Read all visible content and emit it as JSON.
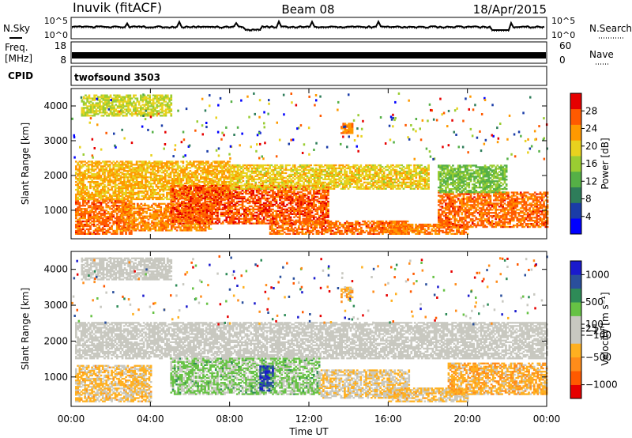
{
  "header": {
    "title_left": "Inuvik (fitACF)",
    "title_center": "Beam 08",
    "title_right": "18/Apr/2015"
  },
  "top_strips": {
    "nsky_label": "N.Sky",
    "nsearch_label": "N.Search",
    "nsky_ticks": [
      "10^5",
      "10^0"
    ],
    "nsearch_ticks": [
      "10^5",
      "10^0"
    ],
    "freq_label": "Freq.",
    "freq_unit": "[MHz]",
    "freq_ticks": [
      "18",
      "8"
    ],
    "nave_label": "Nave",
    "nave_ticks": [
      "60",
      "0"
    ],
    "cpid_label": "CPID",
    "cpid_value": "twofsound 3503"
  },
  "chart_data": [
    {
      "type": "heatmap",
      "name": "power",
      "ylabel": "Slant Range [km]",
      "ylim": [
        180,
        4500
      ],
      "yticks": [
        1000,
        2000,
        3000,
        4000
      ],
      "xlim": [
        0,
        24
      ],
      "xtick_labels": [
        "00:00",
        "04:00",
        "08:00",
        "12:00",
        "16:00",
        "20:00",
        "00:00"
      ],
      "xtick_values": [
        0,
        4,
        8,
        12,
        16,
        20,
        24
      ],
      "colorbar": {
        "label": "Power [dB]",
        "tick_labels": [
          "28",
          "24",
          "20",
          "16",
          "12",
          "8",
          "4"
        ],
        "tick_values": [
          28,
          24,
          20,
          16,
          12,
          8,
          4
        ],
        "range": [
          0,
          32
        ],
        "colors": [
          "#0000ff",
          "#1a3ca8",
          "#2e7d5a",
          "#55b046",
          "#9acd32",
          "#e8d21e",
          "#ff9900",
          "#ff5a00",
          "#e60000"
        ]
      },
      "bands": [
        {
          "t0": 0.2,
          "t1": 3.0,
          "r0": 300,
          "r1": 1300,
          "value": 26
        },
        {
          "t0": 0.2,
          "t1": 8.0,
          "r0": 1300,
          "r1": 2400,
          "value": 22
        },
        {
          "t0": 2.5,
          "t1": 7.0,
          "r0": 400,
          "r1": 1200,
          "value": 24
        },
        {
          "t0": 5.0,
          "t1": 13.0,
          "r0": 600,
          "r1": 1700,
          "value": 27
        },
        {
          "t0": 8.0,
          "t1": 18.0,
          "r0": 1600,
          "r1": 2300,
          "value": 20
        },
        {
          "t0": 10.0,
          "t1": 17.0,
          "r0": 300,
          "r1": 700,
          "value": 26
        },
        {
          "t0": 16.0,
          "t1": 20.0,
          "r0": 300,
          "r1": 600,
          "value": 25
        },
        {
          "t0": 18.5,
          "t1": 24.0,
          "r0": 500,
          "r1": 1500,
          "value": 26
        },
        {
          "t0": 18.5,
          "t1": 22.0,
          "r0": 1500,
          "r1": 2300,
          "value": 14
        },
        {
          "t0": 0.5,
          "t1": 5.0,
          "r0": 3700,
          "r1": 4300,
          "value": 18
        },
        {
          "t0": 13.6,
          "t1": 14.2,
          "r0": 3200,
          "r1": 3500,
          "value": 24
        }
      ]
    },
    {
      "type": "heatmap",
      "name": "velocity",
      "ylabel": "Slant Range [km]",
      "ylim": [
        180,
        4500
      ],
      "yticks": [
        1000,
        2000,
        3000,
        4000
      ],
      "xlim": [
        0,
        24
      ],
      "xtick_labels": [
        "00:00",
        "04:00",
        "08:00",
        "12:00",
        "16:00",
        "20:00",
        "00:00"
      ],
      "xtick_values": [
        0,
        4,
        8,
        12,
        16,
        20,
        24
      ],
      "xlabel": "Time UT",
      "colorbar": {
        "label": "Velocity [m s⁻¹]",
        "tick_labels": [
          "1000",
          "500",
          "100",
          "25",
          "−25",
          "−100",
          "−500",
          "−1000"
        ],
        "tick_values": [
          1000,
          500,
          100,
          25,
          -25,
          -100,
          -500,
          -1000
        ],
        "range": [
          -1250,
          1250
        ],
        "colors": [
          "#e60000",
          "#ff5a00",
          "#ff8c1a",
          "#ffb020",
          "#c8c8c0",
          "#c8c8c0",
          "#66c244",
          "#2e8b57",
          "#2a4f9c",
          "#1a1acd"
        ]
      },
      "bands": [
        {
          "t0": 0.2,
          "t1": 4.0,
          "r0": 300,
          "r1": 1300,
          "value": -300
        },
        {
          "t0": 0.2,
          "t1": 24.0,
          "r0": 1500,
          "r1": 2500,
          "value": 0
        },
        {
          "t0": 5.0,
          "t1": 12.5,
          "r0": 500,
          "r1": 1500,
          "value": 300
        },
        {
          "t0": 9.5,
          "t1": 10.2,
          "r0": 600,
          "r1": 1300,
          "value": 900
        },
        {
          "t0": 12.5,
          "t1": 17.0,
          "r0": 400,
          "r1": 1200,
          "value": -200
        },
        {
          "t0": 16.0,
          "t1": 20.0,
          "r0": 300,
          "r1": 700,
          "value": -300
        },
        {
          "t0": 19.0,
          "t1": 24.0,
          "r0": 500,
          "r1": 1400,
          "value": -400
        },
        {
          "t0": 0.5,
          "t1": 5.0,
          "r0": 3700,
          "r1": 4300,
          "value": 0
        },
        {
          "t0": 13.6,
          "t1": 14.2,
          "r0": 3200,
          "r1": 3500,
          "value": -400
        }
      ]
    }
  ]
}
